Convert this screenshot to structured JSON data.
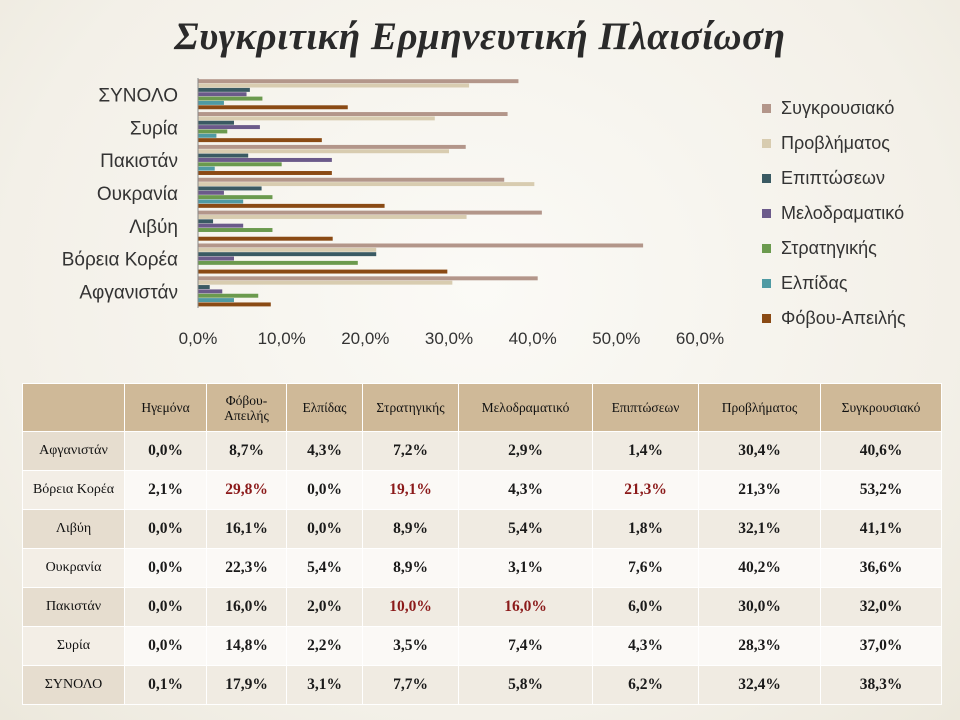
{
  "slide": {
    "title": "Συγκριτική Ερμηνευτική Πλαισίωση"
  },
  "chart_data": {
    "type": "bar",
    "orientation": "horizontal",
    "categories": [
      "ΣΥΝΟΛΟ",
      "Συρία",
      "Πακιστάν",
      "Ουκρανία",
      "Λιβύη",
      "Βόρεια Κορέα",
      "Αφγανιστάν"
    ],
    "series": [
      {
        "name": "Συγκρουσιακό",
        "color": "#b3968a",
        "values": [
          38.3,
          37.0,
          32.0,
          36.6,
          41.1,
          53.2,
          40.6
        ]
      },
      {
        "name": "Προβλήματος",
        "color": "#d8ccb0",
        "values": [
          32.4,
          28.3,
          30.0,
          40.2,
          32.1,
          21.3,
          30.4
        ]
      },
      {
        "name": "Επιπτώσεων",
        "color": "#3a5a63",
        "values": [
          6.2,
          4.3,
          6.0,
          7.6,
          1.8,
          21.3,
          1.4
        ]
      },
      {
        "name": "Μελοδραματικό",
        "color": "#6b5a8a",
        "values": [
          5.8,
          7.4,
          16.0,
          3.1,
          5.4,
          4.3,
          2.9
        ]
      },
      {
        "name": "Στρατηγικής",
        "color": "#6b9a4e",
        "values": [
          7.7,
          3.5,
          10.0,
          8.9,
          8.9,
          19.1,
          7.2
        ]
      },
      {
        "name": "Ελπίδας",
        "color": "#4f9aa3",
        "values": [
          3.1,
          2.2,
          2.0,
          5.4,
          0.0,
          0.0,
          4.3
        ]
      },
      {
        "name": "Φόβου-Απειλής",
        "color": "#8a4a14",
        "values": [
          17.9,
          14.8,
          16.0,
          22.3,
          16.1,
          29.8,
          8.7
        ]
      }
    ],
    "xlim": [
      0,
      60
    ],
    "xticks": [
      "0,0%",
      "10,0%",
      "20,0%",
      "30,0%",
      "40,0%",
      "50,0%",
      "60,0%"
    ],
    "grid": false,
    "legend": "right"
  },
  "table": {
    "columns": [
      "Ηγεμόνα",
      "Φόβου-Απειλής",
      "Ελπίδας",
      "Στρατηγικής",
      "Μελοδραματικό",
      "Επιπτώσεων",
      "Προβλήματος",
      "Συγκρουσιακό"
    ],
    "rows": [
      {
        "label": "Αφγανιστάν",
        "values": [
          "0,0%",
          "8,7%",
          "4,3%",
          "7,2%",
          "2,9%",
          "1,4%",
          "30,4%",
          "40,6%"
        ]
      },
      {
        "label": "Βόρεια Κορέα",
        "values": [
          "2,1%",
          "29,8%",
          "0,0%",
          "19,1%",
          "4,3%",
          "21,3%",
          "21,3%",
          "53,2%"
        ]
      },
      {
        "label": "Λιβύη",
        "values": [
          "0,0%",
          "16,1%",
          "0,0%",
          "8,9%",
          "5,4%",
          "1,8%",
          "32,1%",
          "41,1%"
        ]
      },
      {
        "label": "Ουκρανία",
        "values": [
          "0,0%",
          "22,3%",
          "5,4%",
          "8,9%",
          "3,1%",
          "7,6%",
          "40,2%",
          "36,6%"
        ]
      },
      {
        "label": "Πακιστάν",
        "values": [
          "0,0%",
          "16,0%",
          "2,0%",
          "10,0%",
          "16,0%",
          "6,0%",
          "30,0%",
          "32,0%"
        ]
      },
      {
        "label": "Συρία",
        "values": [
          "0,0%",
          "14,8%",
          "2,2%",
          "3,5%",
          "7,4%",
          "4,3%",
          "28,3%",
          "37,0%"
        ]
      },
      {
        "label": "ΣΥΝΟΛΟ",
        "values": [
          "0,1%",
          "17,9%",
          "3,1%",
          "7,7%",
          "5,8%",
          "6,2%",
          "32,4%",
          "38,3%"
        ]
      }
    ],
    "highlight_color": "#8b1a1a",
    "highlighted_cells": [
      [
        1,
        1
      ],
      [
        1,
        3
      ],
      [
        1,
        5
      ],
      [
        4,
        3
      ],
      [
        4,
        4
      ]
    ]
  }
}
